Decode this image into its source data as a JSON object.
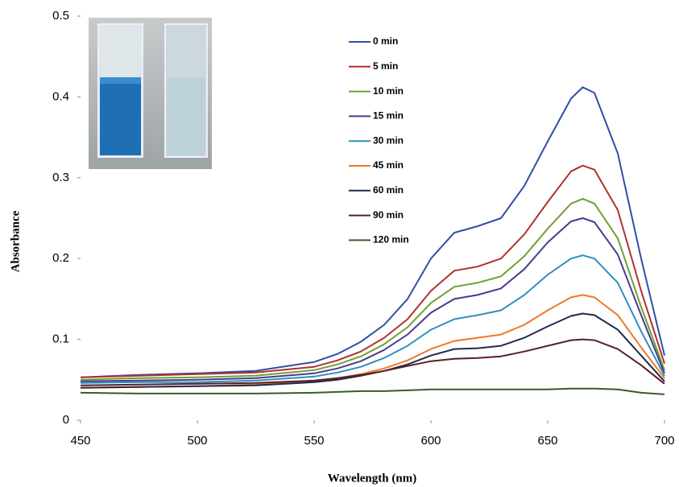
{
  "chart_data": {
    "type": "line",
    "x_label": "Wavelength (nm)",
    "y_label": "Absorbance",
    "x": [
      450,
      475,
      500,
      525,
      550,
      560,
      570,
      580,
      590,
      600,
      610,
      620,
      630,
      640,
      650,
      660,
      665,
      670,
      680,
      690,
      700
    ],
    "xlim": [
      450,
      700
    ],
    "xticks": [
      450,
      500,
      550,
      600,
      650,
      700
    ],
    "ylim": [
      0,
      0.5
    ],
    "yticks": [
      0,
      0.1,
      0.2,
      0.3,
      0.4,
      0.5
    ],
    "series": [
      {
        "name": "0 min",
        "color": "#2f4fa6",
        "values": [
          0.053,
          0.056,
          0.058,
          0.061,
          0.072,
          0.082,
          0.097,
          0.118,
          0.15,
          0.2,
          0.232,
          0.24,
          0.25,
          0.29,
          0.345,
          0.398,
          0.412,
          0.405,
          0.33,
          0.2,
          0.08
        ]
      },
      {
        "name": "5 min",
        "color": "#b0302e",
        "values": [
          0.053,
          0.055,
          0.057,
          0.059,
          0.066,
          0.074,
          0.085,
          0.102,
          0.125,
          0.16,
          0.185,
          0.19,
          0.2,
          0.23,
          0.27,
          0.308,
          0.315,
          0.31,
          0.26,
          0.16,
          0.07
        ]
      },
      {
        "name": "10 min",
        "color": "#6fa030",
        "values": [
          0.05,
          0.052,
          0.053,
          0.055,
          0.062,
          0.069,
          0.079,
          0.094,
          0.115,
          0.145,
          0.165,
          0.17,
          0.178,
          0.203,
          0.237,
          0.268,
          0.274,
          0.268,
          0.225,
          0.14,
          0.062
        ]
      },
      {
        "name": "15 min",
        "color": "#4b3a8f",
        "values": [
          0.048,
          0.049,
          0.05,
          0.052,
          0.058,
          0.064,
          0.073,
          0.087,
          0.106,
          0.133,
          0.15,
          0.155,
          0.163,
          0.187,
          0.22,
          0.246,
          0.25,
          0.245,
          0.205,
          0.13,
          0.058
        ]
      },
      {
        "name": "30 min",
        "color": "#2e8fbf",
        "values": [
          0.046,
          0.047,
          0.047,
          0.049,
          0.054,
          0.059,
          0.066,
          0.077,
          0.092,
          0.112,
          0.125,
          0.13,
          0.136,
          0.155,
          0.18,
          0.2,
          0.204,
          0.2,
          0.17,
          0.11,
          0.055
        ]
      },
      {
        "name": "45 min",
        "color": "#f07828",
        "values": [
          0.04,
          0.041,
          0.042,
          0.044,
          0.048,
          0.052,
          0.057,
          0.064,
          0.074,
          0.088,
          0.098,
          0.102,
          0.106,
          0.118,
          0.136,
          0.152,
          0.155,
          0.152,
          0.13,
          0.09,
          0.052
        ]
      },
      {
        "name": "60 min",
        "color": "#1f2a4c",
        "values": [
          0.04,
          0.041,
          0.042,
          0.043,
          0.047,
          0.05,
          0.055,
          0.061,
          0.069,
          0.08,
          0.088,
          0.089,
          0.092,
          0.102,
          0.116,
          0.129,
          0.132,
          0.13,
          0.112,
          0.08,
          0.048
        ]
      },
      {
        "name": "90 min",
        "color": "#5a2022",
        "values": [
          0.043,
          0.044,
          0.045,
          0.046,
          0.049,
          0.052,
          0.056,
          0.061,
          0.067,
          0.073,
          0.076,
          0.077,
          0.079,
          0.085,
          0.092,
          0.099,
          0.1,
          0.099,
          0.088,
          0.068,
          0.045
        ]
      },
      {
        "name": "120 min",
        "color": "#3a5a2a",
        "values": [
          0.034,
          0.033,
          0.033,
          0.033,
          0.034,
          0.035,
          0.036,
          0.036,
          0.037,
          0.038,
          0.038,
          0.038,
          0.038,
          0.038,
          0.038,
          0.039,
          0.039,
          0.039,
          0.038,
          0.034,
          0.032
        ]
      }
    ]
  }
}
